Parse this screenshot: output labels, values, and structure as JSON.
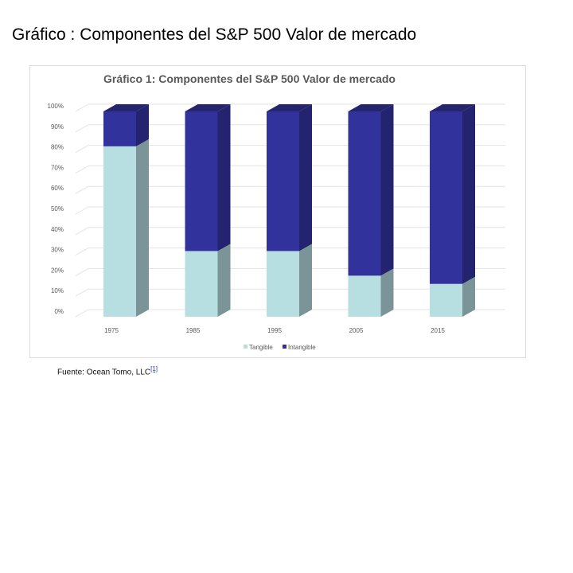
{
  "heading": "Gráfico : Componentes del S&P 500 Valor de mercado",
  "source": {
    "text": "Fuente: Ocean Tomo, LLC",
    "ref": "[1]"
  },
  "colors": {
    "tangible": "#b7dfe2",
    "intangible": "#32329c"
  },
  "chart_data": {
    "type": "bar",
    "stacked": true,
    "title": "Gráfico 1: Componentes del S&P 500 Valor de mercado",
    "xlabel": "",
    "ylabel": "",
    "categories": [
      "1975",
      "1985",
      "1995",
      "2005",
      "2015"
    ],
    "series": [
      {
        "name": "Tangible",
        "values": [
          83,
          32,
          32,
          20,
          16
        ]
      },
      {
        "name": "Intangible",
        "values": [
          17,
          68,
          68,
          80,
          84
        ]
      }
    ],
    "ylim": [
      0,
      100
    ],
    "yticks": [
      "0%",
      "10%",
      "20%",
      "30%",
      "40%",
      "50%",
      "60%",
      "70%",
      "80%",
      "90%",
      "100%"
    ],
    "grid": true,
    "legend": "bottom"
  }
}
